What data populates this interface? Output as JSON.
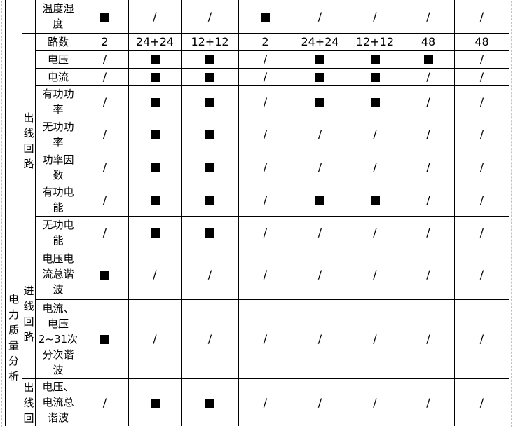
{
  "colors": {
    "grid": "#000000",
    "marker": "#000000",
    "marquee": "#c2c2c2",
    "background": "#ffffff"
  },
  "legend": {
    "filled_marker": "■",
    "not_applicable": "/"
  },
  "table": {
    "partial_top_row": {
      "label": "温度湿\n度",
      "values": [
        "■",
        "/",
        "/",
        "■",
        "/",
        "/",
        "/",
        "/"
      ]
    },
    "outgoing_section": {
      "group_label": "出线回路",
      "rows": [
        {
          "label": "路数",
          "values": [
            "2",
            "24+24",
            "12+12",
            "2",
            "24+24",
            "12+12",
            "48",
            "48"
          ]
        },
        {
          "label": "电压",
          "values": [
            "/",
            "■",
            "■",
            "/",
            "■",
            "■",
            "■",
            "/"
          ]
        },
        {
          "label": "电流",
          "values": [
            "/",
            "■",
            "■",
            "/",
            "■",
            "■",
            "/",
            "/"
          ]
        },
        {
          "label": "有功功\n率",
          "values": [
            "/",
            "■",
            "■",
            "/",
            "■",
            "■",
            "/",
            "/"
          ]
        },
        {
          "label": "无功功\n率",
          "values": [
            "/",
            "■",
            "■",
            "/",
            "/",
            "/",
            "/",
            "/"
          ]
        },
        {
          "label": "功率因\n数",
          "values": [
            "/",
            "■",
            "■",
            "/",
            "/",
            "/",
            "/",
            "/"
          ]
        },
        {
          "label": "有功电\n能",
          "values": [
            "/",
            "■",
            "■",
            "/",
            "■",
            "■",
            "/",
            "/"
          ]
        },
        {
          "label": "无功电\n能",
          "values": [
            "/",
            "■",
            "■",
            "/",
            "/",
            "/",
            "/",
            "/"
          ]
        }
      ]
    },
    "power_quality_section": {
      "section_label": "电力质量分析",
      "subsections": [
        {
          "group_label": "进线回路",
          "rows": [
            {
              "label": "电压电\n流总谐\n波",
              "values": [
                "■",
                "/",
                "/",
                "/",
                "/",
                "/",
                "/",
                "/"
              ]
            },
            {
              "label": "电流、\n电压\n2~31次\n分次谐\n波",
              "values": [
                "■",
                "/",
                "/",
                "/",
                "/",
                "/",
                "/",
                "/"
              ]
            }
          ]
        },
        {
          "group_label": "出线回路",
          "rows": [
            {
              "label": "电压、\n电流总\n谐波",
              "values": [
                "/",
                "■",
                "■",
                "/",
                "/",
                "/",
                "/",
                "/"
              ]
            }
          ]
        }
      ]
    }
  }
}
